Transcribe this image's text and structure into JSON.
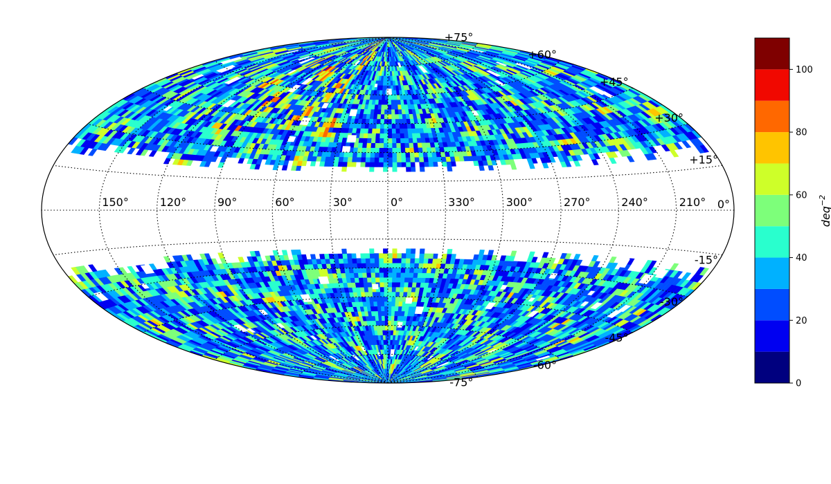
{
  "chart_data": {
    "type": "heatmap",
    "projection": "aitoff",
    "title": "",
    "grid": true,
    "lon_labels": [
      "150°",
      "120°",
      "90°",
      "60°",
      "30°",
      "0°",
      "330°",
      "300°",
      "270°",
      "240°",
      "210°"
    ],
    "lon_values": [
      150,
      120,
      90,
      60,
      30,
      0,
      330,
      300,
      270,
      240,
      210
    ],
    "lat_labels": [
      "+75°",
      "+60°",
      "+45°",
      "+30°",
      "+15°",
      "0°",
      "-15°",
      "-30°",
      "-45°",
      "-60°",
      "-75°"
    ],
    "lat_values": [
      75,
      60,
      45,
      30,
      15,
      0,
      -15,
      -30,
      -45,
      -60,
      -75
    ],
    "coverage": {
      "north_lat_range": [
        20,
        90
      ],
      "south_lat_range": [
        -90,
        -20
      ],
      "masked_lat_range": [
        -20,
        20
      ]
    },
    "colorbar": {
      "label": "deq",
      "label_exponent": "−2",
      "range": [
        0,
        110
      ],
      "ticks": [
        0,
        20,
        40,
        60,
        80,
        100
      ],
      "tick_labels": [
        "0",
        "20",
        "40",
        "60",
        "80",
        "100"
      ],
      "bins": [
        0,
        10,
        20,
        30,
        40,
        50,
        60,
        70,
        80,
        90,
        100,
        110
      ],
      "colors": [
        "#00007f",
        "#0000f1",
        "#004dff",
        "#00b1ff",
        "#29ffce",
        "#7dff7a",
        "#ceff29",
        "#ffc400",
        "#ff6800",
        "#f10800",
        "#7f0000"
      ]
    }
  }
}
